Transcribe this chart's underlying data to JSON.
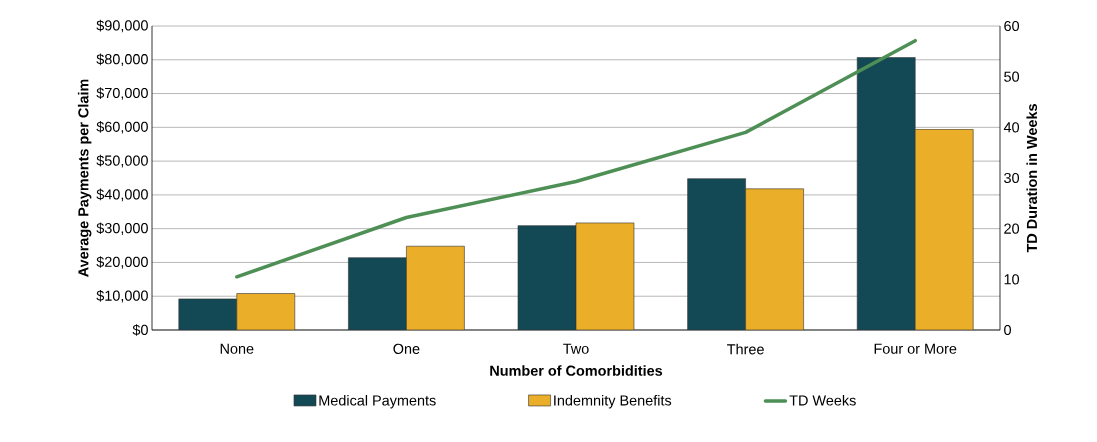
{
  "chart_data": {
    "type": "bar",
    "xlabel": "Number of Comorbidities",
    "ylabel": "Average Payments per Claim",
    "y2label": "TD Duration in Weeks",
    "categories": [
      "None",
      "One",
      "Two",
      "Three",
      "Four or More"
    ],
    "series": [
      {
        "name": "Medical Payments",
        "color": "#124955",
        "values": [
          9200,
          21400,
          30900,
          44800,
          80700
        ]
      },
      {
        "name": "Indemnity Benefits",
        "color": "#ebae28",
        "values": [
          10800,
          24800,
          31700,
          41800,
          59400
        ]
      },
      {
        "name": "TD Weeks",
        "color": "#4e8f55",
        "type": "line",
        "axis": "y2",
        "values": [
          10.5,
          22.2,
          29.3,
          39.0,
          57.1
        ]
      }
    ],
    "ylim": [
      0,
      90000
    ],
    "yticks": [
      {
        "value": 0,
        "label": "$0"
      },
      {
        "value": 10000,
        "label": "$10,000"
      },
      {
        "value": 20000,
        "label": "$20,000"
      },
      {
        "value": 30000,
        "label": "$30,000"
      },
      {
        "value": 40000,
        "label": "$40,000"
      },
      {
        "value": 50000,
        "label": "$50,000"
      },
      {
        "value": 60000,
        "label": "$60,000"
      },
      {
        "value": 70000,
        "label": "$70,000"
      },
      {
        "value": 80000,
        "label": "$80,000"
      },
      {
        "value": 90000,
        "label": "$90,000"
      }
    ],
    "y2lim": [
      0,
      60
    ],
    "y2ticks": [
      0,
      10,
      20,
      30,
      40,
      50,
      60
    ],
    "grid": "y",
    "legend": "bottom",
    "marker": "none"
  }
}
